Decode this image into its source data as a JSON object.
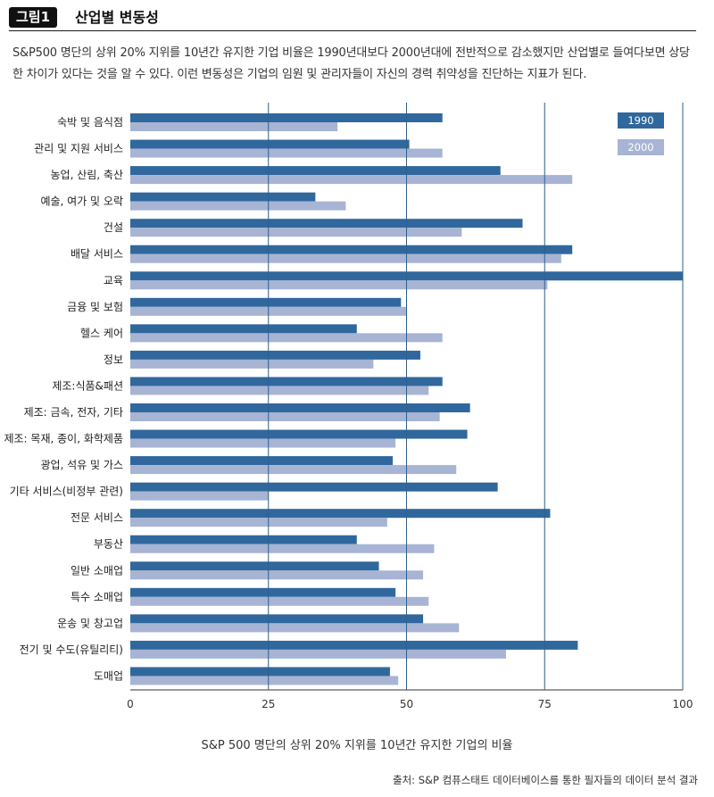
{
  "header": {
    "badge": "그림1",
    "title": "산업별 변동성"
  },
  "description": "S&P500 명단의 상위 20% 지위를 10년간 유지한 기업 비율은 1990년대보다 2000년대에 전반적으로 감소했지만 산업별로 들여다보면 상당한 차이가 있다는 것을 알 수 있다. 이런 변동성은 기업의 임원 및 관리자들이 자신의 경력 취약성을 진단하는 지표가 된다.",
  "source": "출처: S&P 컴퓨스태트 데이터베이스를 통한 필자들의 데이터 분석 결과",
  "colors": {
    "s1990": "#30689d",
    "s2000": "#a7b4d4",
    "grid": "#2f5f8f"
  },
  "chart_data": {
    "type": "bar",
    "orientation": "horizontal",
    "xlabel": "S&P 500 명단의 상위 20% 지위를 10년간 유지한 기업의 비율",
    "xlim": [
      0,
      100
    ],
    "xticks": [
      0,
      25,
      50,
      75,
      100
    ],
    "grid": true,
    "legend_position": "top-right",
    "categories": [
      "숙박 및 음식점",
      "관리 및 지원 서비스",
      "농업, 산림, 축산",
      "예술, 여가 및 오락",
      "건설",
      "배달 서비스",
      "교육",
      "금융 및 보험",
      "헬스 케어",
      "정보",
      "제조:식품&패션",
      "제조: 금속, 전자, 기타",
      "제조: 목재, 종이, 화학제품",
      "광업, 석유 및 가스",
      "기타 서비스(비정부 관련)",
      "전문 서비스",
      "부동산",
      "일반 소매업",
      "특수 소매업",
      "운송 및 창고업",
      "전기 및 수도(유틸리티)",
      "도매업"
    ],
    "series": [
      {
        "name": "1990",
        "values": [
          56.5,
          50.5,
          67,
          33.5,
          71,
          80,
          100,
          49,
          41,
          52.5,
          56.5,
          61.5,
          61,
          47.5,
          66.5,
          76,
          41,
          45,
          48,
          53,
          81,
          47
        ]
      },
      {
        "name": "2000",
        "values": [
          37.5,
          56.5,
          80,
          39,
          60,
          78,
          75.5,
          50,
          56.5,
          44,
          54,
          56,
          48,
          59,
          25,
          46.5,
          55,
          53,
          54,
          59.5,
          68,
          48.5
        ]
      }
    ]
  }
}
